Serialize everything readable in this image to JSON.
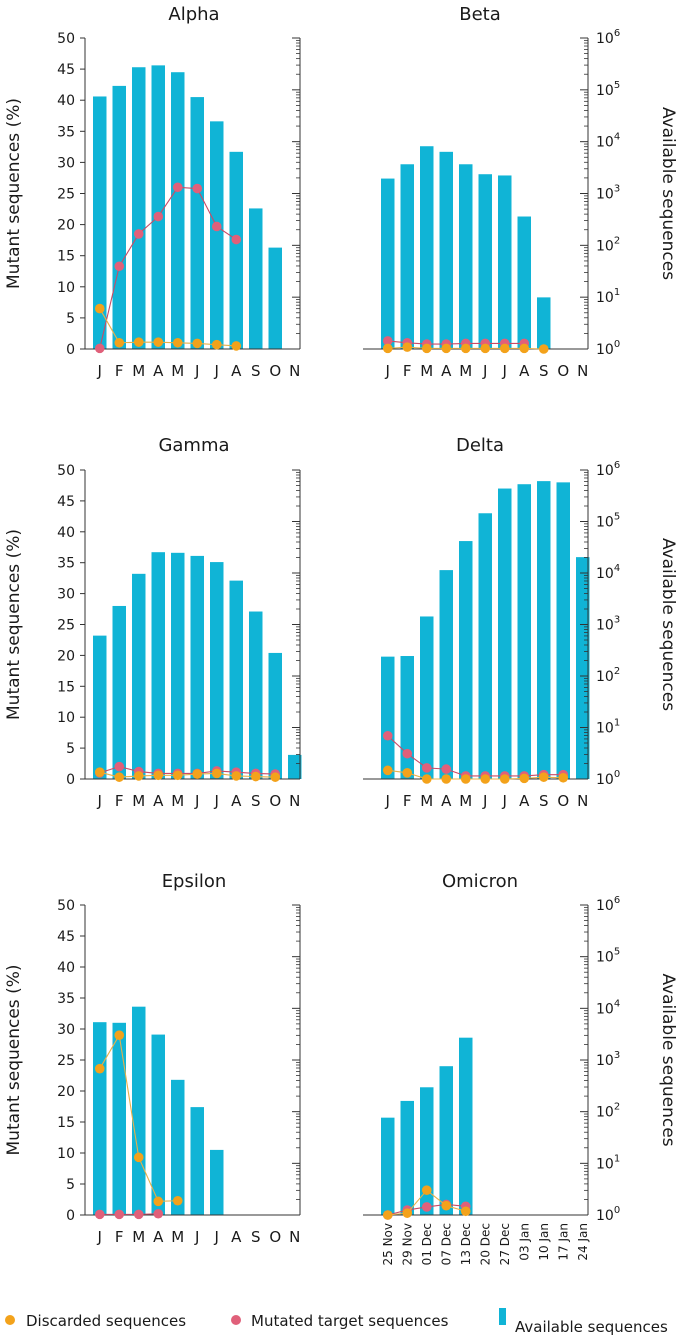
{
  "colors": {
    "bar": "#10b4d6",
    "discarded": "#f3a21b",
    "mutated": "#e0607a",
    "line_discarded": "#e8b04a",
    "line_mutated": "#c94a66",
    "axis": "#333333"
  },
  "axes": {
    "left_label": "Mutant sequences (%)",
    "right_label": "Available sequences",
    "left_ticks": [
      "0",
      "5",
      "10",
      "15",
      "20",
      "25",
      "30",
      "35",
      "40",
      "45",
      "50"
    ],
    "right_ticks": [
      {
        "base": "10",
        "exp": "0"
      },
      {
        "base": "10",
        "exp": "1"
      },
      {
        "base": "10",
        "exp": "2"
      },
      {
        "base": "10",
        "exp": "3"
      },
      {
        "base": "10",
        "exp": "4"
      },
      {
        "base": "10",
        "exp": "5"
      },
      {
        "base": "10",
        "exp": "6"
      }
    ]
  },
  "legend": {
    "discarded": "Discarded sequences",
    "mutated": "Mutated target sequences",
    "available": "Available sequences"
  },
  "chart_data": [
    {
      "type": "bar+line",
      "title": "Alpha",
      "ylim": [
        0,
        50
      ],
      "y2_log_range": [
        0,
        6
      ],
      "categories": [
        "J",
        "F",
        "M",
        "A",
        "M",
        "J",
        "J",
        "A",
        "S",
        "O",
        "N"
      ],
      "available_pct": [
        40.6,
        42.3,
        45.3,
        45.6,
        44.5,
        40.5,
        36.6,
        31.7,
        22.6,
        16.3,
        0
      ],
      "discarded": [
        6.5,
        1.0,
        1.1,
        1.1,
        1.0,
        0.9,
        0.7,
        0.5,
        null,
        null,
        null
      ],
      "mutated": [
        0.1,
        13.3,
        18.5,
        21.3,
        26.0,
        25.8,
        19.7,
        17.6,
        null,
        null,
        null
      ]
    },
    {
      "type": "bar+line",
      "title": "Beta",
      "ylim": [
        0,
        50
      ],
      "y2_log_range": [
        0,
        6
      ],
      "categories": [
        "J",
        "F",
        "M",
        "A",
        "M",
        "J",
        "J",
        "A",
        "S",
        "O",
        "N"
      ],
      "available_pct": [
        27.4,
        29.7,
        32.6,
        31.7,
        29.7,
        28.1,
        27.9,
        21.3,
        8.3,
        0,
        0
      ],
      "discarded": [
        0.1,
        0.3,
        0.1,
        0.1,
        0.1,
        0.1,
        0.1,
        0.1,
        0.0,
        null,
        null
      ],
      "mutated": [
        1.3,
        1.0,
        0.8,
        0.8,
        0.9,
        0.9,
        0.9,
        0.9,
        null,
        null,
        null
      ]
    },
    {
      "type": "bar+line",
      "title": "Gamma",
      "ylim": [
        0,
        50
      ],
      "y2_log_range": [
        0,
        6
      ],
      "categories": [
        "J",
        "F",
        "M",
        "A",
        "M",
        "J",
        "J",
        "A",
        "S",
        "O",
        "N"
      ],
      "available_pct": [
        23.2,
        28.0,
        33.2,
        36.7,
        36.6,
        36.1,
        35.1,
        32.1,
        27.1,
        20.4,
        3.9
      ],
      "discarded": [
        1.1,
        0.3,
        0.5,
        0.6,
        0.6,
        0.8,
        0.9,
        0.5,
        0.4,
        0.3,
        null
      ],
      "mutated": [
        1.0,
        2.0,
        1.2,
        0.9,
        0.9,
        0.9,
        1.3,
        1.1,
        0.9,
        0.8,
        null
      ]
    },
    {
      "type": "bar+line",
      "title": "Delta",
      "ylim": [
        0,
        50
      ],
      "y2_log_range": [
        0,
        6
      ],
      "categories": [
        "J",
        "F",
        "M",
        "A",
        "M",
        "J",
        "J",
        "A",
        "S",
        "O",
        "N"
      ],
      "available_pct": [
        19.8,
        19.9,
        26.3,
        33.8,
        38.5,
        43.0,
        47.0,
        47.7,
        48.2,
        48.0,
        35.9
      ],
      "discarded": [
        1.4,
        1.0,
        0.0,
        0.0,
        0.0,
        0.0,
        0.0,
        0.1,
        0.3,
        0.2,
        null
      ],
      "mutated": [
        7.0,
        4.1,
        1.8,
        1.6,
        0.5,
        0.5,
        0.5,
        0.5,
        0.7,
        0.7,
        null
      ]
    },
    {
      "type": "bar+line",
      "title": "Epsilon",
      "ylim": [
        0,
        50
      ],
      "y2_log_range": [
        0,
        6
      ],
      "categories": [
        "J",
        "F",
        "M",
        "A",
        "M",
        "J",
        "J",
        "A",
        "S",
        "O",
        "N"
      ],
      "available_pct": [
        31.1,
        31.0,
        33.6,
        29.1,
        21.8,
        17.4,
        10.5,
        0,
        0,
        0,
        0
      ],
      "discarded": [
        23.6,
        29.0,
        9.3,
        2.2,
        2.3,
        null,
        null,
        null,
        null,
        null,
        null
      ],
      "mutated": [
        0.1,
        0.1,
        0.1,
        0.2,
        null,
        null,
        null,
        null,
        null,
        null,
        null
      ]
    },
    {
      "type": "bar+line",
      "title": "Omicron",
      "ylim": [
        0,
        50
      ],
      "y2_log_range": [
        0,
        6
      ],
      "categories": [
        "25 Nov",
        "29 Nov",
        "01 Dec",
        "07 Dec",
        "13 Dec",
        "20 Dec",
        "27 Dec",
        "03 Jan",
        "10 Jan",
        "17 Jan",
        "24 Jan"
      ],
      "available_pct": [
        15.7,
        18.4,
        20.6,
        24.0,
        28.6,
        0,
        0,
        0,
        0,
        0,
        0
      ],
      "discarded": [
        0.0,
        0.3,
        4.0,
        1.5,
        0.6,
        null,
        null,
        null,
        null,
        null,
        null
      ],
      "mutated": [
        0.0,
        0.8,
        1.3,
        1.7,
        1.4,
        null,
        null,
        null,
        null,
        null,
        null
      ]
    }
  ]
}
